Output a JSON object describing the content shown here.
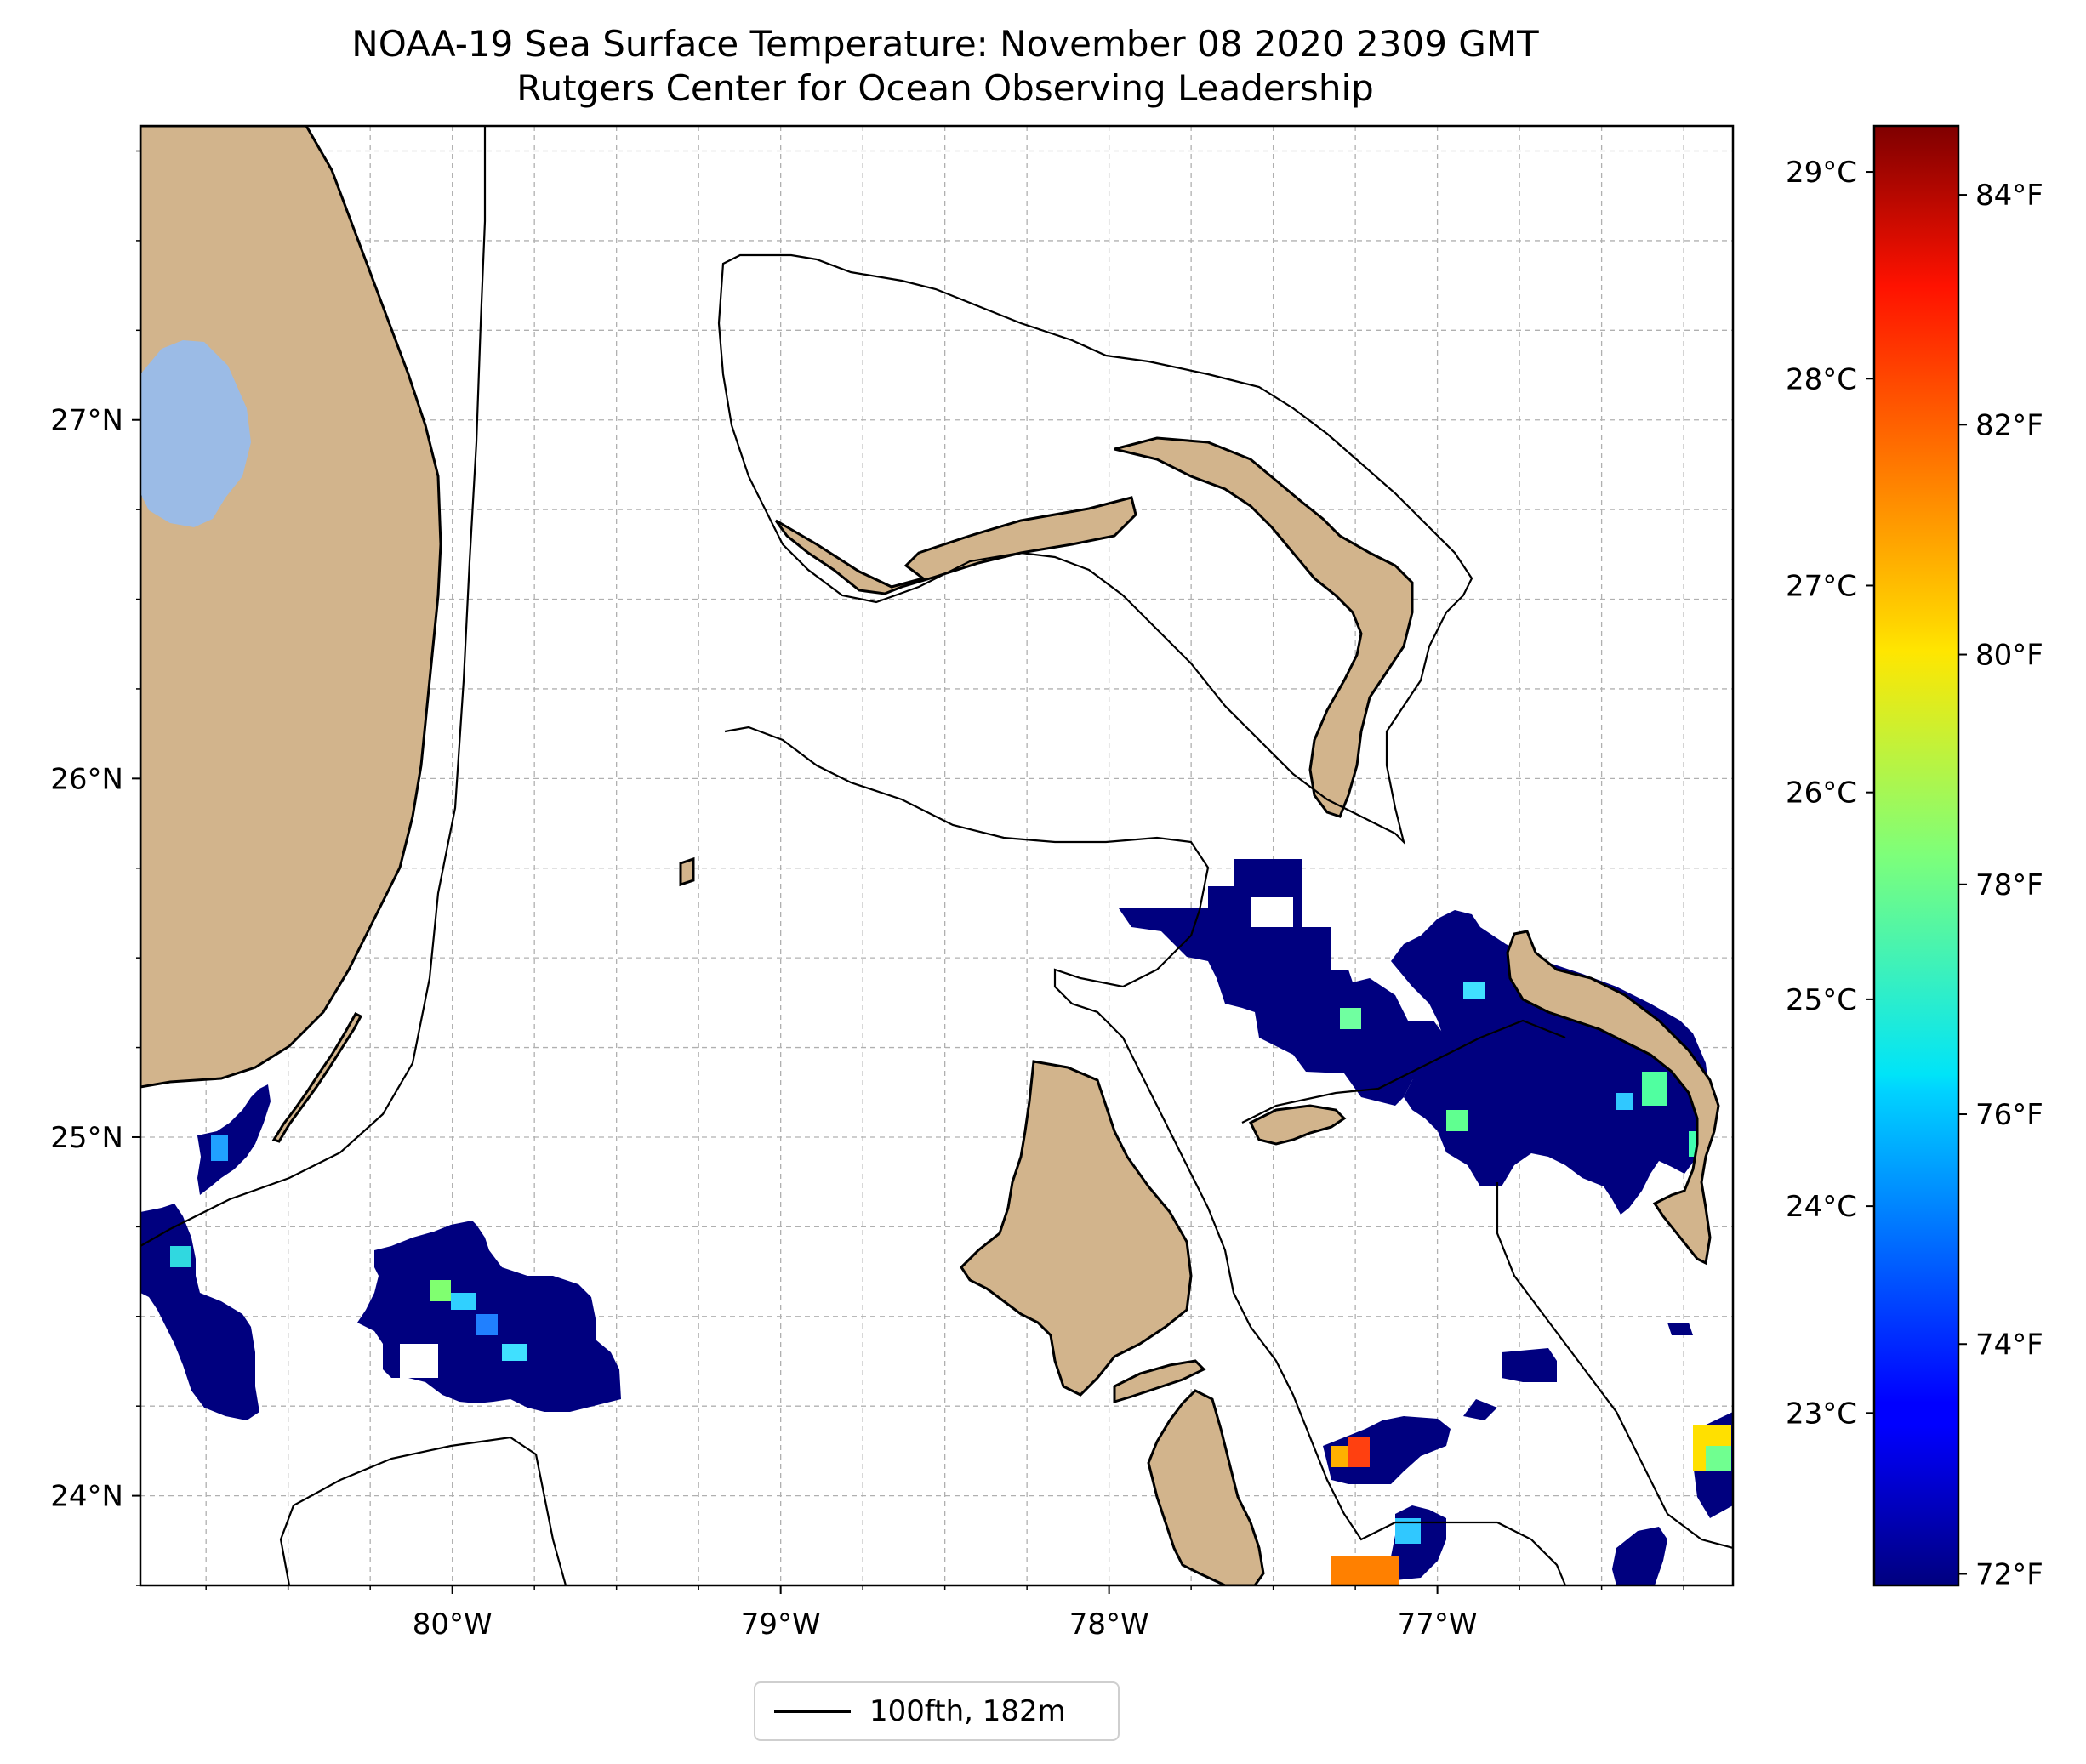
{
  "title": {
    "line1": "NOAA-19 Sea Surface Temperature: November 08 2020 2309 GMT",
    "line2": "Rutgers Center for Ocean Observing Leadership"
  },
  "map": {
    "lon_range": [
      -80.95,
      -76.1
    ],
    "lat_range": [
      23.75,
      27.82
    ],
    "lon_ticks": [
      {
        "value": -80,
        "label": "80°W"
      },
      {
        "value": -79,
        "label": "79°W"
      },
      {
        "value": -78,
        "label": "78°W"
      },
      {
        "value": -77,
        "label": "77°W"
      }
    ],
    "lat_ticks": [
      {
        "value": 24,
        "label": "24°N"
      },
      {
        "value": 25,
        "label": "25°N"
      },
      {
        "value": 26,
        "label": "26°N"
      },
      {
        "value": 27,
        "label": "27°N"
      }
    ],
    "gridlines": "dashed",
    "colors": {
      "land": "#d2b48c",
      "lake": "#9bbbe6",
      "ocean_background": "#ffffff",
      "isobath": "#000000",
      "grid": "#b0b0b0"
    }
  },
  "colorbar": {
    "colormap": "jet",
    "celsius_ticks": [
      {
        "value": 23,
        "label": "23°C"
      },
      {
        "value": 24,
        "label": "24°C"
      },
      {
        "value": 25,
        "label": "25°C"
      },
      {
        "value": 26,
        "label": "26°C"
      },
      {
        "value": 27,
        "label": "27°C"
      },
      {
        "value": 28,
        "label": "28°C"
      },
      {
        "value": 29,
        "label": "29°C"
      }
    ],
    "fahrenheit_ticks": [
      {
        "value": 72,
        "label": "72°F"
      },
      {
        "value": 74,
        "label": "74°F"
      },
      {
        "value": 76,
        "label": "76°F"
      },
      {
        "value": 78,
        "label": "78°F"
      },
      {
        "value": 80,
        "label": "80°F"
      },
      {
        "value": 82,
        "label": "82°F"
      },
      {
        "value": 84,
        "label": "84°F"
      }
    ],
    "range_f": [
      71.9,
      84.6
    ]
  },
  "legend": {
    "label": "100fth, 182m"
  }
}
